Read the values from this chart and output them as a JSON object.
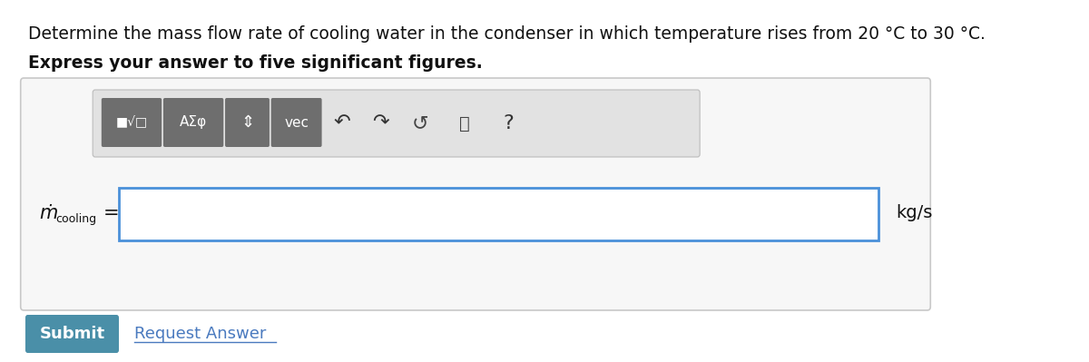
{
  "title_line1": "Determine the mass flow rate of cooling water in the condenser in which temperature rises from 20 °C to 30 °C.",
  "title_line2": "Express your answer to five significant figures.",
  "label_mdot": "ṁ",
  "label_subscript": "cooling",
  "equals": "=",
  "unit_text": "kg/s",
  "submit_text": "Submit",
  "request_text": "Request Answer",
  "bg_color": "#ffffff",
  "outer_box_edge_color": "#c8c8c8",
  "outer_box_face_color": "#f7f7f7",
  "input_box_border": "#4a90d9",
  "toolbar_bg": "#e2e2e2",
  "btn_color": "#6e6e6e",
  "submit_btn_color": "#4a8fa8",
  "submit_btn_text_color": "#ffffff",
  "request_link_color": "#4a7abf",
  "title_fontsize": 13.5,
  "subtitle_fontsize": 13.5,
  "label_fontsize": 13,
  "unit_fontsize": 13
}
